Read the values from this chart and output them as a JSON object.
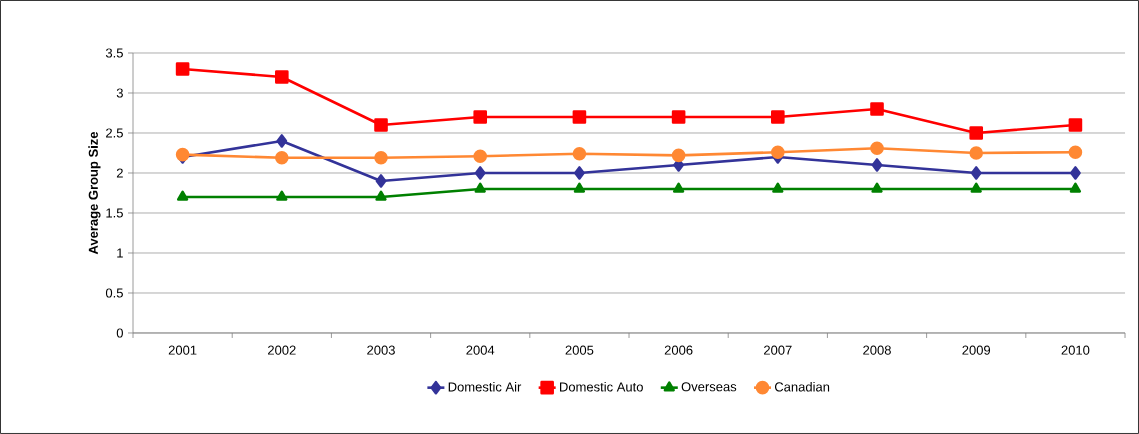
{
  "chart_data": {
    "type": "line",
    "ylabel": "Average Group Size",
    "categories": [
      "2001",
      "2002",
      "2003",
      "2004",
      "2005",
      "2006",
      "2007",
      "2008",
      "2009",
      "2010"
    ],
    "series": [
      {
        "name": "Domestic Air",
        "color": "#333399",
        "marker": "diamond",
        "values": [
          2.2,
          2.4,
          1.9,
          2.0,
          2.0,
          2.1,
          2.2,
          2.1,
          2.0,
          2.0
        ]
      },
      {
        "name": "Domestic Auto",
        "color": "#ff0000",
        "marker": "square",
        "values": [
          3.3,
          3.2,
          2.6,
          2.7,
          2.7,
          2.7,
          2.7,
          2.8,
          2.5,
          2.6
        ]
      },
      {
        "name": "Overseas",
        "color": "#008000",
        "marker": "triangle",
        "values": [
          1.7,
          1.7,
          1.7,
          1.8,
          1.8,
          1.8,
          1.8,
          1.8,
          1.8,
          1.8
        ]
      },
      {
        "name": "Canadian",
        "color": "#ff8833",
        "marker": "circle",
        "values": [
          2.23,
          2.19,
          2.19,
          2.21,
          2.24,
          2.22,
          2.26,
          2.31,
          2.25,
          2.26
        ]
      }
    ],
    "ylim": [
      0,
      3.5
    ],
    "yticks": [
      0,
      0.5,
      1,
      1.5,
      2,
      2.5,
      3,
      3.5
    ],
    "grid": "y",
    "legend": "bottom",
    "line_style": "solid"
  }
}
